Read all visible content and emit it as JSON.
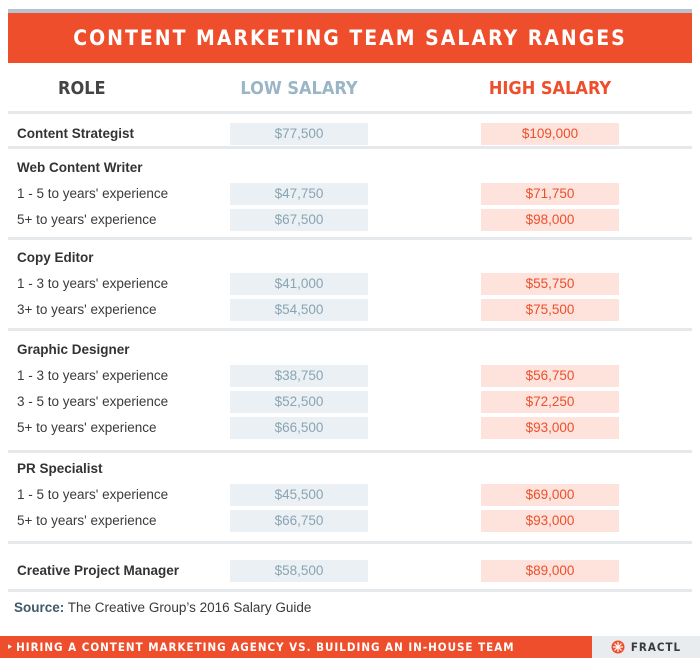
{
  "title": "CONTENT MARKETING TEAM SALARY RANGES",
  "headers": {
    "role": "ROLE",
    "low": "LOW SALARY",
    "high": "HIGH SALARY"
  },
  "rows": [
    {
      "label": "Content Strategist",
      "bold": true,
      "low": "$77,500",
      "high": "$109,000"
    },
    {
      "label": "Web Content Writer",
      "bold": true,
      "low": "",
      "high": ""
    },
    {
      "label": "1 - 5 to years' experience",
      "bold": false,
      "low": "$47,750",
      "high": "$71,750"
    },
    {
      "label": "5+ to years' experience",
      "bold": false,
      "low": "$67,500",
      "high": "$98,000"
    },
    {
      "label": "Copy Editor",
      "bold": true,
      "low": "",
      "high": ""
    },
    {
      "label": "1 - 3 to years' experience",
      "bold": false,
      "low": "$41,000",
      "high": "$55,750"
    },
    {
      "label": "3+ to years' experience",
      "bold": false,
      "low": "$54,500",
      "high": "$75,500"
    },
    {
      "label": "Graphic Designer",
      "bold": true,
      "low": "",
      "high": ""
    },
    {
      "label": "1 - 3 to years' experience",
      "bold": false,
      "low": "$38,750",
      "high": "$56,750"
    },
    {
      "label": "3 - 5 to years' experience",
      "bold": false,
      "low": "$52,500",
      "high": "$72,250"
    },
    {
      "label": "5+ to years' experience",
      "bold": false,
      "low": "$66,500",
      "high": "$93,000"
    },
    {
      "label": "PR Specialist",
      "bold": true,
      "low": "",
      "high": ""
    },
    {
      "label": "1 - 5 to years' experience",
      "bold": false,
      "low": "$45,500",
      "high": "$69,000"
    },
    {
      "label": "5+ to years' experience",
      "bold": false,
      "low": "$66,750",
      "high": "$93,000"
    },
    {
      "label": "Creative Project  Manager",
      "bold": true,
      "low": "$58,500",
      "high": "$89,000"
    }
  ],
  "source": {
    "label": "Source:",
    "text": "The Creative Group’s 2016 Salary Guide"
  },
  "footer": {
    "text": "HIRING A CONTENT MARKETING AGENCY VS. BUILDING AN IN-HOUSE TEAM",
    "brand": "FRACTL",
    "arrow_icon": "chevron-right-icon",
    "logo_icon": "fractl-logo-icon"
  },
  "colors": {
    "accent": "#ee4e2b",
    "low_bg": "#eaf0f3",
    "high_bg": "#fde3dc",
    "low_text": "#8aa4b3"
  },
  "chart_data": {
    "type": "table",
    "title": "CONTENT MARKETING TEAM SALARY RANGES",
    "columns": [
      "ROLE",
      "LOW SALARY",
      "HIGH SALARY"
    ],
    "groups": [
      {
        "role": "Content Strategist",
        "rows": [
          {
            "label": "",
            "low": 77500,
            "high": 109000
          }
        ]
      },
      {
        "role": "Web Content Writer",
        "rows": [
          {
            "label": "1 - 5 to years' experience",
            "low": 47750,
            "high": 71750
          },
          {
            "label": "5+ to years' experience",
            "low": 67500,
            "high": 98000
          }
        ]
      },
      {
        "role": "Copy Editor",
        "rows": [
          {
            "label": "1 - 3 to years' experience",
            "low": 41000,
            "high": 55750
          },
          {
            "label": "3+ to years' experience",
            "low": 54500,
            "high": 75500
          }
        ]
      },
      {
        "role": "Graphic Designer",
        "rows": [
          {
            "label": "1 - 3 to years' experience",
            "low": 38750,
            "high": 56750
          },
          {
            "label": "3 - 5 to years' experience",
            "low": 52500,
            "high": 72250
          },
          {
            "label": "5+ to years' experience",
            "low": 66500,
            "high": 93000
          }
        ]
      },
      {
        "role": "PR Specialist",
        "rows": [
          {
            "label": "1 - 5 to years' experience",
            "low": 45500,
            "high": 69000
          },
          {
            "label": "5+ to years' experience",
            "low": 66750,
            "high": 93000
          }
        ]
      },
      {
        "role": "Creative Project  Manager",
        "rows": [
          {
            "label": "",
            "low": 58500,
            "high": 89000
          }
        ]
      }
    ]
  }
}
